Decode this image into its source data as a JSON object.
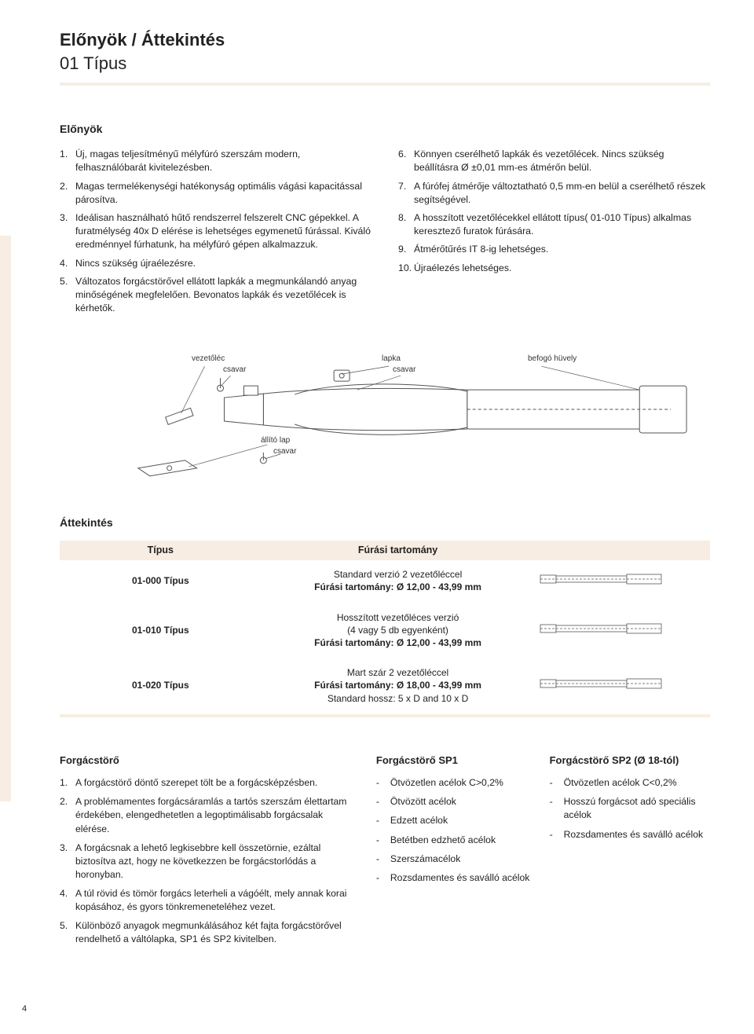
{
  "header": {
    "title_bold": "Előnyök / Áttekintés",
    "title_light": "01 Típus"
  },
  "advantages": {
    "heading": "Előnyök",
    "left": [
      {
        "n": "1.",
        "t": "Új, magas teljesítményű mélyfúró szerszám modern, felhasználóbarát kivitelezésben."
      },
      {
        "n": "2.",
        "t": "Magas termelékenységi hatékonyság optimális vágási kapacitással párosítva."
      },
      {
        "n": "3.",
        "t": "Ideálisan használható hűtő rendszerrel felszerelt CNC gépekkel. A furatmélység 40x D elérése is lehetséges egymenetű fúrással. Kiváló eredménnyel fúrhatunk, ha mélyfúró gépen alkalmazzuk."
      },
      {
        "n": "4.",
        "t": "Nincs szükség újraélezésre."
      },
      {
        "n": "5.",
        "t": "Változatos forgácstörővel ellátott lapkák a megmunkálandó anyag minőségének megfelelően. Bevonatos lapkák és vezetőlécek is kérhetők."
      }
    ],
    "right": [
      {
        "n": "6.",
        "t": "Könnyen cserélhető lapkák és vezetőlécek. Nincs szükség beállításra Ø ±0,01 mm-es átmérőn belül."
      },
      {
        "n": "7.",
        "t": "A fúrófej átmérője változtatható 0,5 mm-en belül a cserélhető részek segítségével."
      },
      {
        "n": "8.",
        "t": "A hosszított vezetőlécekkel ellátott típus( 01-010 Típus) alkalmas keresztező furatok fúrására."
      },
      {
        "n": "9.",
        "t": "Átmérőtűrés IT 8-ig lehetséges."
      },
      {
        "n": "10.",
        "t": "Újraélezés lehetséges."
      }
    ]
  },
  "diagram_labels": {
    "l1": "vezetőléc",
    "l2": "csavar",
    "l3": "lapka",
    "l4": "csavar",
    "l5": "befogó hüvely",
    "l6": "állító lap",
    "l7": "csavar"
  },
  "overview": {
    "heading": "Áttekintés",
    "cols": {
      "c1": "Típus",
      "c2": "Fúrási tartomány"
    },
    "rows": [
      {
        "type": "01-000 Típus",
        "desc": "Standard verzió 2 vezetőléccel",
        "range": "Fúrási tartomány: Ø 12,00 - 43,99 mm",
        "extra": ""
      },
      {
        "type": "01-010 Típus",
        "desc": "Hosszított vezetőléces verzió\n(4 vagy 5 db egyenként)",
        "range": "Fúrási tartomány: Ø 12,00 - 43,99 mm",
        "extra": ""
      },
      {
        "type": "01-020 Típus",
        "desc": "Mart szár 2 vezetőléccel",
        "range": "Fúrási tartomány: Ø 18,00 - 43,99 mm",
        "extra": "Standard hossz: 5 x D and 10 x D"
      }
    ]
  },
  "chipbreaker": {
    "main_head": "Forgácstörő",
    "main_items": [
      {
        "n": "1.",
        "t": "A forgácstörő döntő szerepet tölt be a forgácsképzésben."
      },
      {
        "n": "2.",
        "t": "A problémamentes forgácsáramlás a tartós szerszám élettartam érdekében, elengedhetetlen a legoptimálisabb forgácsalak elérése."
      },
      {
        "n": "3.",
        "t": "A forgácsnak a lehető legkisebbre kell összetörnie, ezáltal biztosítva azt, hogy ne következzen be forgácstorlódás a horonyban."
      },
      {
        "n": "4.",
        "t": "A túl rövid és tömör forgács leterheli a vágóélt, mely annak korai kopásához, és gyors tönkremeneteléhez vezet."
      },
      {
        "n": "5.",
        "t": "Különböző anyagok megmunkálásához két fajta forgácstörővel rendelhető a váltólapka, SP1 és SP2 kivitelben."
      }
    ],
    "sp1_head": "Forgácstörő SP1",
    "sp1_items": [
      "Ötvözetlen acélok C>0,2%",
      "Ötvözött acélok",
      "Edzett acélok",
      "Betétben edzhető acélok",
      "Szerszámacélok",
      "Rozsdamentes és saválló acélok"
    ],
    "sp2_head": "Forgácstörő SP2 (Ø 18-tól)",
    "sp2_items": [
      "Ötvözetlen acélok C<0,2%",
      "Hosszú forgácsot adó speciális acélok",
      "Rozsdamentes és saválló acélok"
    ]
  },
  "page_number": "4",
  "colors": {
    "accent_bg": "#f7ede2",
    "text": "#222222",
    "stroke": "#555555"
  }
}
